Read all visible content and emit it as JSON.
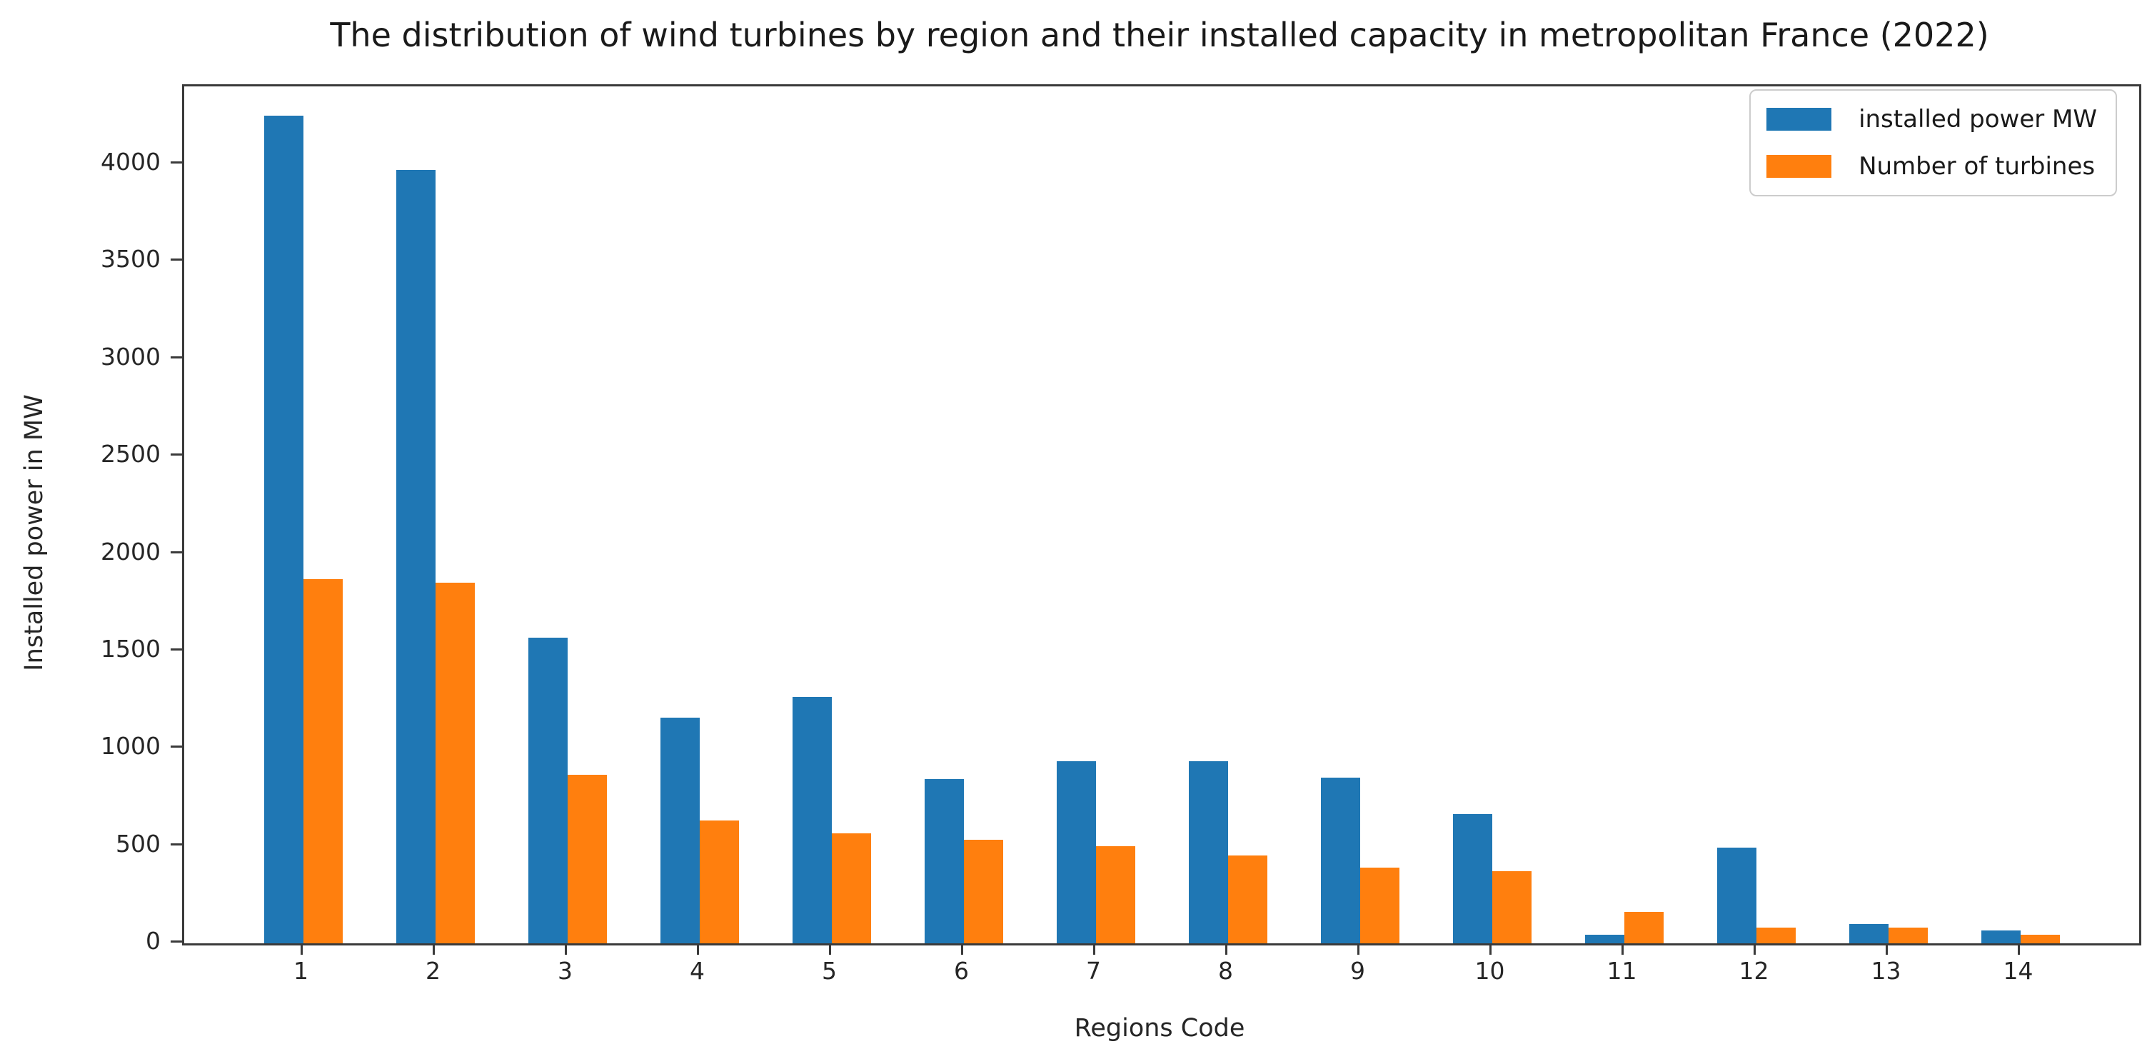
{
  "chart_data": {
    "type": "bar",
    "title": "The distribution of wind turbines by region and their installed capacity in metropolitan France (2022)",
    "xlabel": "Regions Code",
    "ylabel": "Installed power in MW",
    "categories": [
      "1",
      "2",
      "3",
      "4",
      "5",
      "6",
      "7",
      "8",
      "9",
      "10",
      "11",
      "12",
      "13",
      "14"
    ],
    "series": [
      {
        "name": "installed power MW",
        "color": "#1f77b4",
        "values": [
          4250,
          3970,
          1570,
          1160,
          1265,
          845,
          935,
          935,
          850,
          665,
          45,
          490,
          100,
          65
        ]
      },
      {
        "name": "Number of turbines",
        "color": "#ff7f0e",
        "values": [
          1870,
          1850,
          865,
          630,
          565,
          530,
          500,
          450,
          390,
          370,
          160,
          80,
          80,
          45
        ]
      }
    ],
    "yticks": [
      0,
      500,
      1000,
      1500,
      2000,
      2500,
      3000,
      3500,
      4000
    ],
    "ylim": [
      0,
      4400
    ],
    "grid": false,
    "legend_position": "upper right"
  }
}
